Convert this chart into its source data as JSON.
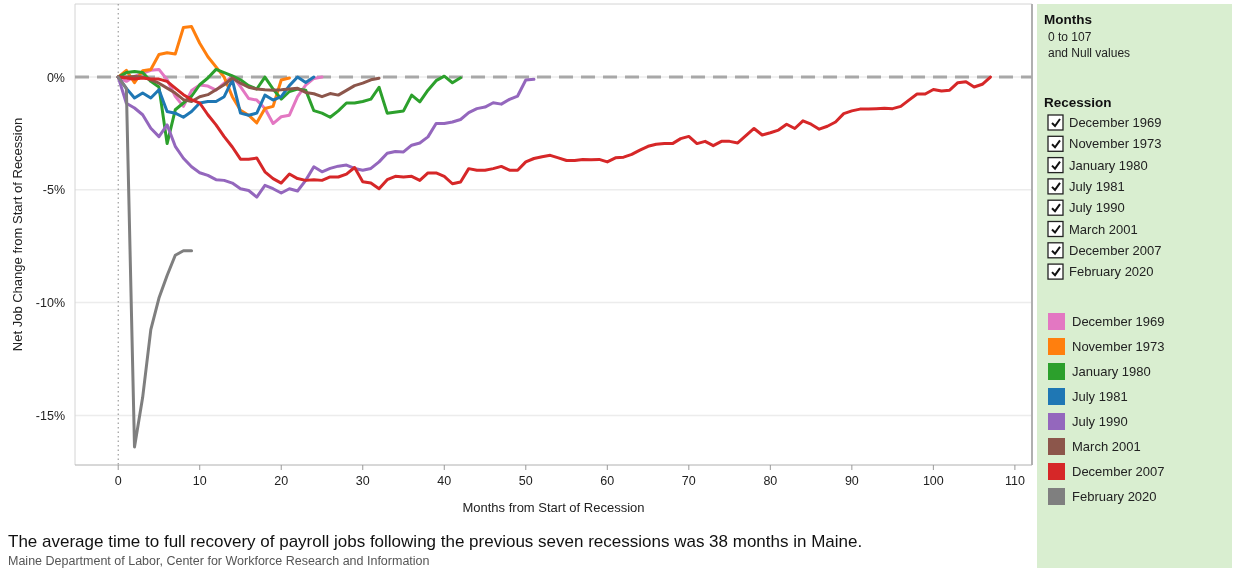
{
  "chart_data": {
    "type": "line",
    "xlabel": "Months from Start of Recession",
    "ylabel": "Net Job Change from Start of Recession",
    "xlim": [
      -5.3,
      112.1
    ],
    "ylim": [
      -17.2,
      3.24
    ],
    "xticks": [
      0,
      10,
      20,
      30,
      40,
      50,
      60,
      70,
      80,
      90,
      100,
      110
    ],
    "yticks": [
      {
        "value": 0,
        "label": "0%"
      },
      {
        "value": -5,
        "label": "-5%"
      },
      {
        "value": -10,
        "label": "-10%"
      },
      {
        "value": -15,
        "label": "-15%"
      }
    ],
    "grid": "y",
    "legend": "right",
    "legend_title": "Recession",
    "line_style": "solid",
    "marker": "none",
    "ref_lines": [
      {
        "axis": "y",
        "value": 0,
        "label": null,
        "color": "#a8a8a8",
        "line_style": "dashed"
      },
      {
        "axis": "x",
        "value": 0,
        "label": null,
        "color": "#888888",
        "line_style": "dotted"
      }
    ],
    "annotations": [
      "Months",
      "0 to 107",
      "and Null values",
      "The average time to full recovery of payroll jobs following the previous seven recessions was 38 months in Maine.",
      "Maine Department of Labor, Center for Workforce Research and Information"
    ],
    "series": [
      {
        "name": "December 1969",
        "color": "#e377c2",
        "x": [
          0,
          1,
          2,
          3,
          4,
          5,
          6,
          7,
          8,
          9,
          10,
          11,
          12,
          14,
          15,
          16,
          17,
          18,
          19,
          20,
          21,
          22,
          23,
          24,
          25
        ],
        "values": [
          0,
          -0.19,
          0.03,
          0.17,
          0.3,
          0.34,
          -0.12,
          -0.85,
          -1.3,
          -0.6,
          -0.35,
          -0.4,
          -0.58,
          0.04,
          -0.42,
          -0.95,
          -1.02,
          -1.39,
          -2.06,
          -1.76,
          -1.69,
          -0.87,
          -0.36,
          -0.06,
          0
        ]
      },
      {
        "name": "November 1973",
        "color": "#ff7f0e",
        "x": [
          0,
          1,
          2,
          3,
          4,
          5,
          6,
          7,
          8,
          9,
          10,
          11,
          13,
          14,
          15,
          16,
          17,
          18,
          19,
          20,
          21
        ],
        "values": [
          0,
          0.3,
          -0.25,
          0.28,
          0.34,
          1.0,
          1.08,
          1.02,
          2.2,
          2.24,
          1.5,
          0.9,
          0,
          -0.87,
          -1.47,
          -1.69,
          -2.03,
          -1.39,
          -1.3,
          -0.13,
          -0.04
        ]
      },
      {
        "name": "January 1980",
        "color": "#2ca02c",
        "x": [
          0,
          1,
          2,
          3,
          4,
          5,
          6,
          7,
          8,
          9,
          10,
          11,
          12,
          13,
          14,
          15,
          16,
          17,
          18,
          19,
          20,
          21,
          22,
          23,
          24,
          25,
          26,
          27,
          28,
          29,
          30,
          31,
          32,
          33,
          35,
          36,
          37,
          38,
          39,
          40,
          41,
          42
        ],
        "values": [
          0,
          0.2,
          0.25,
          0.2,
          -0.19,
          -0.44,
          -2.95,
          -1.45,
          -1.15,
          -0.85,
          -0.34,
          -0.04,
          0.34,
          0.2,
          0.05,
          -0.12,
          -0.38,
          -0.53,
          0,
          -0.53,
          -0.98,
          -0.64,
          -0.53,
          -0.58,
          -1.49,
          -1.6,
          -1.78,
          -1.5,
          -1.15,
          -1.15,
          -1.08,
          -0.98,
          -0.45,
          -1.6,
          -1.5,
          -0.8,
          -1.1,
          -0.58,
          -0.16,
          0.04,
          -0.25,
          -0.03
        ]
      },
      {
        "name": "July 1981",
        "color": "#1f77b4",
        "x": [
          0,
          1,
          2,
          3,
          4,
          5,
          6,
          7,
          8,
          9,
          10,
          11,
          12,
          13,
          14,
          15,
          16,
          17,
          18,
          19,
          20,
          21,
          22,
          23,
          24
        ],
        "values": [
          0,
          -0.5,
          -0.93,
          -0.71,
          -0.93,
          -0.56,
          -1.53,
          -1.6,
          -1.78,
          -1.53,
          -1.15,
          -1.08,
          -1.08,
          -0.87,
          -0.12,
          -1.6,
          -1.69,
          -1.6,
          -0.8,
          -1.02,
          -0.87,
          -0.38,
          0,
          -0.24,
          0
        ]
      },
      {
        "name": "July 1990",
        "color": "#9467bd",
        "x": [
          0,
          1,
          2,
          3,
          4,
          5,
          6,
          7,
          8,
          9,
          10,
          11,
          12,
          13,
          14,
          15,
          16,
          17,
          18,
          19,
          20,
          21,
          22,
          23,
          24,
          25,
          26,
          27,
          28,
          29,
          30,
          31,
          32,
          33,
          34,
          35,
          36,
          37,
          38,
          39,
          40,
          41,
          42,
          43,
          44,
          45,
          46,
          47,
          48,
          49,
          50,
          51
        ],
        "values": [
          0,
          -1.16,
          -1.37,
          -1.67,
          -2.27,
          -2.64,
          -2.12,
          -3.07,
          -3.6,
          -3.98,
          -4.24,
          -4.36,
          -4.55,
          -4.58,
          -4.7,
          -4.95,
          -5.03,
          -5.32,
          -4.8,
          -4.95,
          -5.14,
          -4.95,
          -5.05,
          -4.58,
          -3.98,
          -4.2,
          -4.05,
          -3.95,
          -3.9,
          -4.05,
          -4.13,
          -4.05,
          -3.76,
          -3.38,
          -3.3,
          -3.32,
          -3.02,
          -2.92,
          -2.65,
          -2.06,
          -2.06,
          -1.99,
          -1.88,
          -1.58,
          -1.4,
          -1.33,
          -1.14,
          -1.2,
          -0.99,
          -0.84,
          -0.13,
          -0.1
        ]
      },
      {
        "name": "March 2001",
        "color": "#8c564b",
        "x": [
          0,
          1,
          2,
          3,
          4,
          5,
          6,
          7,
          8,
          9,
          10,
          11,
          12,
          13,
          14,
          15,
          16,
          17,
          18,
          19,
          20,
          21,
          22,
          23,
          24,
          25,
          26,
          27,
          28,
          29,
          30,
          31,
          32
        ],
        "values": [
          0,
          0,
          0.03,
          0,
          -0.12,
          -0.27,
          -0.49,
          -0.71,
          -1.0,
          -1.08,
          -0.87,
          -0.78,
          -0.56,
          -0.34,
          -0.04,
          -0.27,
          -0.45,
          -0.53,
          -0.56,
          -0.58,
          -0.56,
          -0.53,
          -0.5,
          -0.68,
          -0.74,
          -0.87,
          -0.73,
          -0.8,
          -0.59,
          -0.38,
          -0.27,
          -0.12,
          -0.05
        ]
      },
      {
        "name": "December 2007",
        "color": "#d62728",
        "x": [
          0,
          1,
          2,
          3,
          4,
          5,
          6,
          7,
          8,
          9,
          10,
          11,
          12,
          13,
          14,
          15,
          16,
          17,
          18,
          19,
          20,
          21,
          22,
          23,
          24,
          25,
          26,
          27,
          28,
          29,
          30,
          31,
          32,
          33,
          34,
          35,
          36,
          37,
          38,
          39,
          40,
          41,
          42,
          43,
          44,
          45,
          46,
          47,
          48,
          49,
          50,
          51,
          52,
          53,
          54,
          55,
          56,
          57,
          58,
          59,
          60,
          61,
          62,
          63,
          64,
          65,
          66,
          67,
          68,
          69,
          70,
          71,
          72,
          73,
          74,
          75,
          76,
          78,
          79,
          80,
          81,
          82,
          83,
          84,
          85,
          86,
          87,
          88,
          89,
          90,
          91,
          92,
          93,
          94,
          95,
          96,
          97,
          98,
          99,
          100,
          101,
          102,
          103,
          104,
          105,
          106,
          107
        ],
        "values": [
          0,
          -0.04,
          -0.09,
          -0.04,
          -0.09,
          -0.09,
          -0.19,
          -0.49,
          -0.78,
          -1.0,
          -1.15,
          -1.67,
          -2.12,
          -2.64,
          -3.1,
          -3.64,
          -3.64,
          -3.59,
          -4.2,
          -4.5,
          -4.7,
          -4.3,
          -4.5,
          -4.58,
          -4.55,
          -4.58,
          -4.43,
          -4.43,
          -4.3,
          -4.01,
          -4.64,
          -4.7,
          -4.95,
          -4.55,
          -4.4,
          -4.43,
          -4.4,
          -4.58,
          -4.25,
          -4.25,
          -4.4,
          -4.73,
          -4.65,
          -4.06,
          -4.13,
          -4.13,
          -4.06,
          -3.96,
          -4.13,
          -4.13,
          -3.76,
          -3.61,
          -3.53,
          -3.47,
          -3.58,
          -3.7,
          -3.7,
          -3.65,
          -3.67,
          -3.65,
          -3.76,
          -3.58,
          -3.55,
          -3.43,
          -3.24,
          -3.07,
          -2.98,
          -2.95,
          -2.95,
          -2.73,
          -2.63,
          -2.95,
          -2.85,
          -3.04,
          -2.85,
          -2.85,
          -2.92,
          -2.28,
          -2.57,
          -2.47,
          -2.35,
          -2.09,
          -2.28,
          -1.94,
          -2.09,
          -2.31,
          -2.18,
          -1.99,
          -1.62,
          -1.5,
          -1.42,
          -1.42,
          -1.4,
          -1.38,
          -1.4,
          -1.3,
          -1.02,
          -0.75,
          -0.75,
          -0.55,
          -0.62,
          -0.58,
          -0.25,
          -0.21,
          -0.44,
          -0.32,
          0
        ]
      },
      {
        "name": "February 2020",
        "color": "#7f7f7f",
        "x": [
          0,
          1,
          2,
          3,
          4,
          5,
          6,
          7,
          8,
          9
        ],
        "values": [
          0,
          -0.5,
          -16.4,
          -14.2,
          -11.2,
          -9.8,
          -8.8,
          -7.9,
          -7.7,
          -7.7
        ]
      }
    ]
  }
}
